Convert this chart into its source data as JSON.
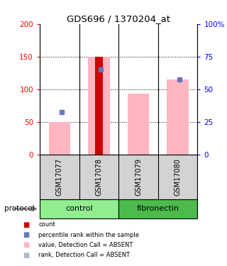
{
  "title": "GDS696 / 1370204_at",
  "samples": [
    "GSM17077",
    "GSM17078",
    "GSM17079",
    "GSM17080"
  ],
  "pink_bars": [
    50,
    150,
    93,
    115
  ],
  "red_bars": [
    0,
    150,
    0,
    0
  ],
  "blue_squares": [
    65,
    130,
    null,
    115
  ],
  "left_ylim": [
    0,
    200
  ],
  "right_ylim": [
    0,
    100
  ],
  "left_yticks": [
    0,
    50,
    100,
    150,
    200
  ],
  "right_yticks": [
    0,
    25,
    50,
    75,
    100
  ],
  "right_yticklabels": [
    "0",
    "25",
    "50",
    "75",
    "100%"
  ],
  "dotted_lines": [
    50,
    100,
    150
  ],
  "protocol_groups": [
    {
      "label": "control",
      "indices": [
        0,
        1
      ],
      "color": "#90EE90"
    },
    {
      "label": "fibronectin",
      "indices": [
        2,
        3
      ],
      "color": "#4CBB4C"
    }
  ],
  "protocol_label": "protocol",
  "pink_color": "#FFB6C1",
  "red_color": "#CC0000",
  "blue_sq_color": "#6677BB",
  "light_blue_color": "#AABBCC",
  "legend_items": [
    {
      "color": "#CC0000",
      "label": "count"
    },
    {
      "color": "#6677BB",
      "label": "percentile rank within the sample"
    },
    {
      "color": "#FFB6C1",
      "label": "value, Detection Call = ABSENT"
    },
    {
      "color": "#AABBCC",
      "label": "rank, Detection Call = ABSENT"
    }
  ],
  "bar_width": 0.55,
  "fig_width": 3.2,
  "fig_height": 3.75,
  "dpi": 100
}
